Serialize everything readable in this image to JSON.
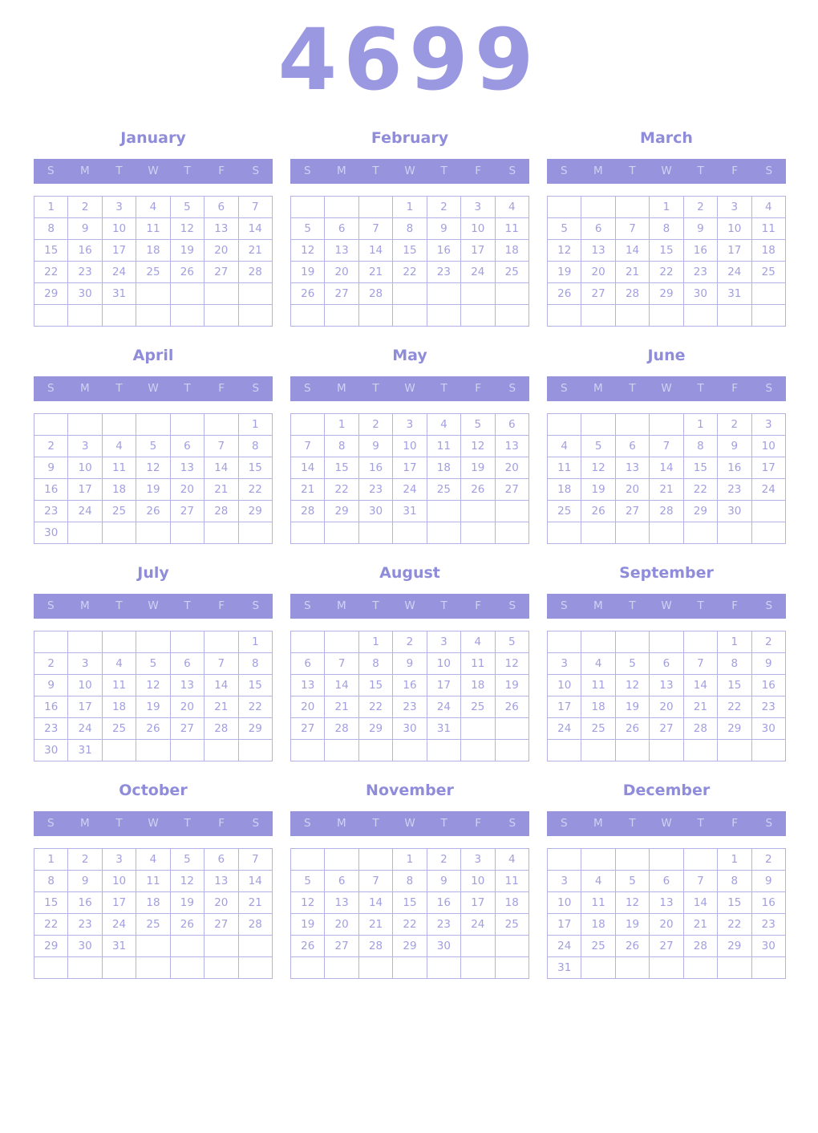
{
  "calendar": {
    "year": "4699",
    "day_headers": [
      "S",
      "M",
      "T",
      "W",
      "T",
      "F",
      "S"
    ],
    "colors": {
      "accent": "#9794dd",
      "title_color": "#9b98e2",
      "month_name_color": "#8f8cda",
      "header_bg": "#9794dd",
      "header_text": "#d3d1f2",
      "cell_border": "#b4b1e6",
      "date_text": "#a29fe0",
      "background": "#ffffff"
    },
    "months": [
      {
        "name": "January",
        "weeks": [
          [
            "1",
            "2",
            "3",
            "4",
            "5",
            "6",
            "7"
          ],
          [
            "8",
            "9",
            "10",
            "11",
            "12",
            "13",
            "14"
          ],
          [
            "15",
            "16",
            "17",
            "18",
            "19",
            "20",
            "21"
          ],
          [
            "22",
            "23",
            "24",
            "25",
            "26",
            "27",
            "28"
          ],
          [
            "29",
            "30",
            "31",
            "",
            "",
            "",
            ""
          ],
          [
            "",
            "",
            "",
            "",
            "",
            "",
            ""
          ]
        ]
      },
      {
        "name": "February",
        "weeks": [
          [
            "",
            "",
            "",
            "1",
            "2",
            "3",
            "4"
          ],
          [
            "5",
            "6",
            "7",
            "8",
            "9",
            "10",
            "11"
          ],
          [
            "12",
            "13",
            "14",
            "15",
            "16",
            "17",
            "18"
          ],
          [
            "19",
            "20",
            "21",
            "22",
            "23",
            "24",
            "25"
          ],
          [
            "26",
            "27",
            "28",
            "",
            "",
            "",
            ""
          ],
          [
            "",
            "",
            "",
            "",
            "",
            "",
            ""
          ]
        ]
      },
      {
        "name": "March",
        "weeks": [
          [
            "",
            "",
            "",
            "1",
            "2",
            "3",
            "4"
          ],
          [
            "5",
            "6",
            "7",
            "8",
            "9",
            "10",
            "11"
          ],
          [
            "12",
            "13",
            "14",
            "15",
            "16",
            "17",
            "18"
          ],
          [
            "19",
            "20",
            "21",
            "22",
            "23",
            "24",
            "25"
          ],
          [
            "26",
            "27",
            "28",
            "29",
            "30",
            "31",
            ""
          ],
          [
            "",
            "",
            "",
            "",
            "",
            "",
            ""
          ]
        ]
      },
      {
        "name": "April",
        "weeks": [
          [
            "",
            "",
            "",
            "",
            "",
            "",
            "1"
          ],
          [
            "2",
            "3",
            "4",
            "5",
            "6",
            "7",
            "8"
          ],
          [
            "9",
            "10",
            "11",
            "12",
            "13",
            "14",
            "15"
          ],
          [
            "16",
            "17",
            "18",
            "19",
            "20",
            "21",
            "22"
          ],
          [
            "23",
            "24",
            "25",
            "26",
            "27",
            "28",
            "29"
          ],
          [
            "30",
            "",
            "",
            "",
            "",
            "",
            ""
          ]
        ]
      },
      {
        "name": "May",
        "weeks": [
          [
            "",
            "1",
            "2",
            "3",
            "4",
            "5",
            "6"
          ],
          [
            "7",
            "8",
            "9",
            "10",
            "11",
            "12",
            "13"
          ],
          [
            "14",
            "15",
            "16",
            "17",
            "18",
            "19",
            "20"
          ],
          [
            "21",
            "22",
            "23",
            "24",
            "25",
            "26",
            "27"
          ],
          [
            "28",
            "29",
            "30",
            "31",
            "",
            "",
            ""
          ],
          [
            "",
            "",
            "",
            "",
            "",
            "",
            ""
          ]
        ]
      },
      {
        "name": "June",
        "weeks": [
          [
            "",
            "",
            "",
            "",
            "1",
            "2",
            "3"
          ],
          [
            "4",
            "5",
            "6",
            "7",
            "8",
            "9",
            "10"
          ],
          [
            "11",
            "12",
            "13",
            "14",
            "15",
            "16",
            "17"
          ],
          [
            "18",
            "19",
            "20",
            "21",
            "22",
            "23",
            "24"
          ],
          [
            "25",
            "26",
            "27",
            "28",
            "29",
            "30",
            ""
          ],
          [
            "",
            "",
            "",
            "",
            "",
            "",
            ""
          ]
        ]
      },
      {
        "name": "July",
        "weeks": [
          [
            "",
            "",
            "",
            "",
            "",
            "",
            "1"
          ],
          [
            "2",
            "3",
            "4",
            "5",
            "6",
            "7",
            "8"
          ],
          [
            "9",
            "10",
            "11",
            "12",
            "13",
            "14",
            "15"
          ],
          [
            "16",
            "17",
            "18",
            "19",
            "20",
            "21",
            "22"
          ],
          [
            "23",
            "24",
            "25",
            "26",
            "27",
            "28",
            "29"
          ],
          [
            "30",
            "31",
            "",
            "",
            "",
            "",
            ""
          ]
        ]
      },
      {
        "name": "August",
        "weeks": [
          [
            "",
            "",
            "1",
            "2",
            "3",
            "4",
            "5"
          ],
          [
            "6",
            "7",
            "8",
            "9",
            "10",
            "11",
            "12"
          ],
          [
            "13",
            "14",
            "15",
            "16",
            "17",
            "18",
            "19"
          ],
          [
            "20",
            "21",
            "22",
            "23",
            "24",
            "25",
            "26"
          ],
          [
            "27",
            "28",
            "29",
            "30",
            "31",
            "",
            ""
          ],
          [
            "",
            "",
            "",
            "",
            "",
            "",
            ""
          ]
        ]
      },
      {
        "name": "September",
        "weeks": [
          [
            "",
            "",
            "",
            "",
            "",
            "1",
            "2"
          ],
          [
            "3",
            "4",
            "5",
            "6",
            "7",
            "8",
            "9"
          ],
          [
            "10",
            "11",
            "12",
            "13",
            "14",
            "15",
            "16"
          ],
          [
            "17",
            "18",
            "19",
            "20",
            "21",
            "22",
            "23"
          ],
          [
            "24",
            "25",
            "26",
            "27",
            "28",
            "29",
            "30"
          ],
          [
            "",
            "",
            "",
            "",
            "",
            "",
            ""
          ]
        ]
      },
      {
        "name": "October",
        "weeks": [
          [
            "1",
            "2",
            "3",
            "4",
            "5",
            "6",
            "7"
          ],
          [
            "8",
            "9",
            "10",
            "11",
            "12",
            "13",
            "14"
          ],
          [
            "15",
            "16",
            "17",
            "18",
            "19",
            "20",
            "21"
          ],
          [
            "22",
            "23",
            "24",
            "25",
            "26",
            "27",
            "28"
          ],
          [
            "29",
            "30",
            "31",
            "",
            "",
            "",
            ""
          ],
          [
            "",
            "",
            "",
            "",
            "",
            "",
            ""
          ]
        ]
      },
      {
        "name": "November",
        "weeks": [
          [
            "",
            "",
            "",
            "1",
            "2",
            "3",
            "4"
          ],
          [
            "5",
            "6",
            "7",
            "8",
            "9",
            "10",
            "11"
          ],
          [
            "12",
            "13",
            "14",
            "15",
            "16",
            "17",
            "18"
          ],
          [
            "19",
            "20",
            "21",
            "22",
            "23",
            "24",
            "25"
          ],
          [
            "26",
            "27",
            "28",
            "29",
            "30",
            "",
            ""
          ],
          [
            "",
            "",
            "",
            "",
            "",
            "",
            ""
          ]
        ]
      },
      {
        "name": "December",
        "weeks": [
          [
            "",
            "",
            "",
            "",
            "",
            "1",
            "2"
          ],
          [
            "3",
            "4",
            "5",
            "6",
            "7",
            "8",
            "9"
          ],
          [
            "10",
            "11",
            "12",
            "13",
            "14",
            "15",
            "16"
          ],
          [
            "17",
            "18",
            "19",
            "20",
            "21",
            "22",
            "23"
          ],
          [
            "24",
            "25",
            "26",
            "27",
            "28",
            "29",
            "30"
          ],
          [
            "31",
            "",
            "",
            "",
            "",
            "",
            ""
          ]
        ]
      }
    ]
  }
}
